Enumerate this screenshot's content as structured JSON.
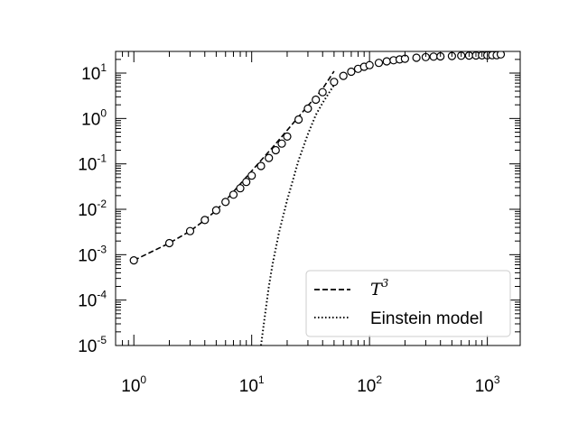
{
  "chart_data": {
    "type": "scatter",
    "title": "",
    "xlabel": "",
    "ylabel": "",
    "x_scale": "log",
    "y_scale": "log",
    "xlim": [
      0.7,
      1900
    ],
    "ylim": [
      1e-05,
      30
    ],
    "grid": false,
    "legend_position": "lower-right",
    "x_ticks": [
      {
        "value": 1,
        "base": "10",
        "exp": "0"
      },
      {
        "value": 10,
        "base": "10",
        "exp": "1"
      },
      {
        "value": 100,
        "base": "10",
        "exp": "2"
      },
      {
        "value": 1000,
        "base": "10",
        "exp": "3"
      }
    ],
    "y_ticks": [
      {
        "value": 1e-05,
        "base": "10",
        "exp": "-5"
      },
      {
        "value": 0.0001,
        "base": "10",
        "exp": "-4"
      },
      {
        "value": 0.001,
        "base": "10",
        "exp": "-3"
      },
      {
        "value": 0.01,
        "base": "10",
        "exp": "-2"
      },
      {
        "value": 0.1,
        "base": "10",
        "exp": "-1"
      },
      {
        "value": 1,
        "base": "10",
        "exp": "0"
      },
      {
        "value": 10,
        "base": "10",
        "exp": "1"
      }
    ],
    "series": [
      {
        "style": "open-circle-markers",
        "color": "#000000",
        "x": [
          1,
          2,
          3,
          4,
          5,
          6,
          7,
          8,
          9,
          10,
          12,
          14,
          16,
          18,
          20,
          25,
          30,
          35,
          40,
          50,
          60,
          70,
          80,
          90,
          100,
          120,
          140,
          160,
          180,
          200,
          250,
          300,
          350,
          400,
          500,
          600,
          700,
          800,
          900,
          1000,
          1100,
          1200,
          1300
        ],
        "y": [
          0.00075,
          0.0018,
          0.0033,
          0.0058,
          0.0095,
          0.0145,
          0.021,
          0.029,
          0.04,
          0.055,
          0.09,
          0.135,
          0.2,
          0.28,
          0.4,
          0.95,
          1.65,
          2.6,
          3.8,
          6.4,
          8.7,
          10.7,
          12.4,
          13.8,
          15.0,
          16.8,
          18.1,
          19.2,
          20.0,
          20.7,
          21.8,
          22.5,
          23.0,
          23.3,
          23.8,
          24.1,
          24.3,
          24.4,
          24.5,
          24.6,
          24.7,
          24.8,
          25.8
        ]
      },
      {
        "name": "T³",
        "style": "dashed-line",
        "color": "#000000",
        "x": [
          1,
          2,
          3,
          4,
          5,
          6,
          8,
          10,
          15,
          20,
          30,
          40,
          50
        ],
        "y": [
          0.00075,
          0.0018,
          0.0033,
          0.0058,
          0.0095,
          0.0155,
          0.036,
          0.07,
          0.23,
          0.55,
          1.9,
          4.5,
          11
        ]
      },
      {
        "name": "Einstein model",
        "style": "dotted-line",
        "color": "#000000",
        "x": [
          12,
          13,
          14,
          15,
          17,
          20,
          25,
          30,
          35,
          40,
          50
        ],
        "y": [
          1e-05,
          5e-05,
          0.0002,
          0.0006,
          0.003,
          0.016,
          0.12,
          0.45,
          1.2,
          2.2,
          5.5
        ]
      }
    ],
    "legend": {
      "entries": [
        {
          "label_base": "T",
          "label_exp": "3",
          "style": "dashed"
        },
        {
          "label": "Einstein model",
          "style": "dotted"
        }
      ]
    }
  }
}
